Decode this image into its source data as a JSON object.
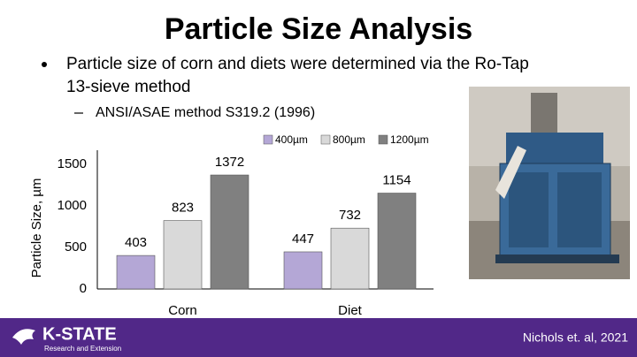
{
  "title": "Particle Size Analysis",
  "bullets": [
    "Particle size of corn and diets were determined via the Ro-Tap",
    "13-sieve method"
  ],
  "sub_bullet": "ANSI/ASAE method S319.2 (1996)",
  "footer": {
    "logo": "K-STATE",
    "logo_sub": "Research and Extension",
    "citation": "Nichols et. al, 2021"
  },
  "chart_data": {
    "type": "bar",
    "y_label": "Particle Size, µm",
    "categories": [
      "Corn",
      "Diet"
    ],
    "series": [
      {
        "name": "400µm",
        "color": "#b4a7d6",
        "values": [
          403,
          447
        ]
      },
      {
        "name": "800µm",
        "color": "#d9d9d9",
        "values": [
          823,
          732
        ]
      },
      {
        "name": "1200µm",
        "color": "#808080",
        "values": [
          1372,
          1154
        ]
      }
    ],
    "ylim": [
      0,
      1500
    ],
    "yticks": [
      0,
      500,
      1000,
      1500
    ],
    "grid": false,
    "legend": "top"
  }
}
